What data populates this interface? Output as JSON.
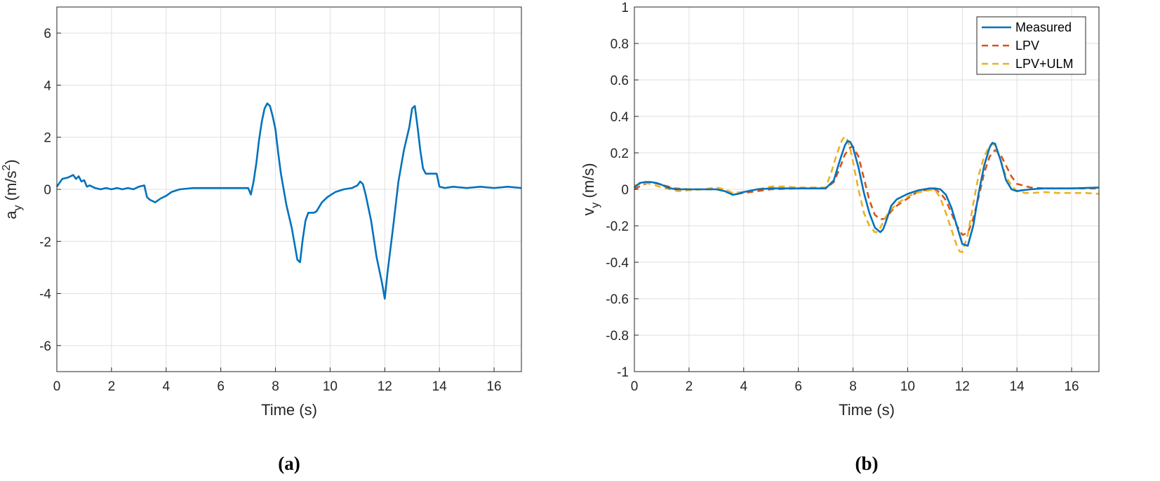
{
  "chart_data": [
    {
      "type": "line",
      "caption": "(a)",
      "xlabel": "Time (s)",
      "ylabel_main": "a",
      "ylabel_sub": "y",
      "ylabel_unit_pre": " (m/s",
      "ylabel_sup": "2",
      "ylabel_unit_post": ")",
      "xlim": [
        0,
        17
      ],
      "ylim": [
        -7,
        7
      ],
      "xticks": [
        0,
        2,
        4,
        6,
        8,
        10,
        12,
        14,
        16
      ],
      "yticks": [
        -6,
        -4,
        -2,
        0,
        2,
        4,
        6
      ],
      "grid": true,
      "series": [
        {
          "color": "#0072BD",
          "dash": "solid",
          "x": [
            0,
            0.2,
            0.4,
            0.5,
            0.6,
            0.7,
            0.8,
            0.9,
            1.0,
            1.1,
            1.2,
            1.4,
            1.6,
            1.8,
            2.0,
            2.2,
            2.4,
            2.6,
            2.8,
            3.0,
            3.2,
            3.3,
            3.4,
            3.5,
            3.6,
            3.8,
            4.0,
            4.2,
            4.5,
            5.0,
            5.5,
            6.0,
            6.5,
            7.0,
            7.1,
            7.2,
            7.3,
            7.4,
            7.5,
            7.6,
            7.7,
            7.8,
            7.9,
            8.0,
            8.1,
            8.2,
            8.3,
            8.4,
            8.6,
            8.8,
            8.9,
            9.0,
            9.1,
            9.2,
            9.4,
            9.5,
            9.7,
            9.9,
            10.2,
            10.5,
            10.8,
            11.0,
            11.1,
            11.2,
            11.3,
            11.5,
            11.7,
            11.9,
            12.0,
            12.1,
            12.3,
            12.5,
            12.7,
            12.9,
            13.0,
            13.1,
            13.2,
            13.3,
            13.4,
            13.5,
            13.7,
            13.9,
            14.0,
            14.2,
            14.5,
            15.0,
            15.5,
            16.0,
            16.5,
            17.0
          ],
          "y": [
            0.1,
            0.4,
            0.45,
            0.5,
            0.55,
            0.4,
            0.5,
            0.3,
            0.35,
            0.1,
            0.15,
            0.05,
            0.0,
            0.05,
            0.0,
            0.05,
            0.0,
            0.05,
            0.0,
            0.1,
            0.15,
            -0.3,
            -0.4,
            -0.45,
            -0.5,
            -0.35,
            -0.25,
            -0.1,
            0.0,
            0.05,
            0.05,
            0.05,
            0.05,
            0.05,
            -0.2,
            0.3,
            1.0,
            1.9,
            2.6,
            3.1,
            3.3,
            3.2,
            2.8,
            2.3,
            1.4,
            0.6,
            0.0,
            -0.6,
            -1.5,
            -2.7,
            -2.8,
            -1.9,
            -1.2,
            -0.9,
            -0.9,
            -0.85,
            -0.5,
            -0.3,
            -0.1,
            0.0,
            0.05,
            0.15,
            0.3,
            0.2,
            -0.2,
            -1.2,
            -2.6,
            -3.6,
            -4.2,
            -3.2,
            -1.5,
            0.3,
            1.5,
            2.4,
            3.1,
            3.2,
            2.4,
            1.5,
            0.8,
            0.6,
            0.6,
            0.6,
            0.1,
            0.05,
            0.1,
            0.05,
            0.1,
            0.05,
            0.1,
            0.05
          ]
        }
      ]
    },
    {
      "type": "line",
      "caption": "(b)",
      "xlabel": "Time (s)",
      "ylabel_main": "v",
      "ylabel_sub": "y",
      "ylabel_unit_pre": " (m/s)",
      "xlim": [
        0,
        17
      ],
      "ylim": [
        -1,
        1
      ],
      "xticks": [
        0,
        2,
        4,
        6,
        8,
        10,
        12,
        14,
        16
      ],
      "yticks": [
        -1,
        -0.8,
        -0.6,
        -0.4,
        -0.2,
        0,
        0.2,
        0.4,
        0.6,
        0.8,
        1
      ],
      "grid": true,
      "legend_position": "top-right",
      "series": [
        {
          "name": "Measured",
          "color": "#0072BD",
          "dash": "solid",
          "x": [
            0,
            0.2,
            0.4,
            0.6,
            0.8,
            1.0,
            1.2,
            1.5,
            2.0,
            2.5,
            3.0,
            3.3,
            3.6,
            3.8,
            4.0,
            4.5,
            5.0,
            6.0,
            7.0,
            7.3,
            7.5,
            7.7,
            7.8,
            7.9,
            8.0,
            8.2,
            8.4,
            8.6,
            8.8,
            9.0,
            9.1,
            9.2,
            9.4,
            9.6,
            9.8,
            10.0,
            10.2,
            10.4,
            10.6,
            10.8,
            11.0,
            11.2,
            11.4,
            11.6,
            11.8,
            12.0,
            12.2,
            12.4,
            12.6,
            12.8,
            13.0,
            13.1,
            13.2,
            13.4,
            13.6,
            13.8,
            14.0,
            14.2,
            14.5,
            15.0,
            16.0,
            17.0
          ],
          "y": [
            0.01,
            0.035,
            0.04,
            0.04,
            0.035,
            0.025,
            0.01,
            0.0,
            0.0,
            0.0,
            0.0,
            -0.01,
            -0.03,
            -0.025,
            -0.015,
            0.0,
            0.005,
            0.005,
            0.005,
            0.05,
            0.15,
            0.24,
            0.265,
            0.26,
            0.23,
            0.12,
            -0.02,
            -0.13,
            -0.21,
            -0.235,
            -0.22,
            -0.18,
            -0.09,
            -0.055,
            -0.04,
            -0.025,
            -0.015,
            -0.005,
            0.0,
            0.005,
            0.005,
            0.0,
            -0.03,
            -0.1,
            -0.2,
            -0.3,
            -0.31,
            -0.2,
            -0.02,
            0.13,
            0.23,
            0.255,
            0.25,
            0.16,
            0.05,
            0.0,
            -0.01,
            -0.005,
            0.0,
            0.005,
            0.005,
            0.01
          ]
        },
        {
          "name": "LPV",
          "color": "#D95319",
          "dash": "dashed",
          "x": [
            0,
            0.3,
            0.6,
            1.0,
            1.5,
            2.0,
            2.5,
            3.0,
            3.4,
            3.7,
            4.0,
            4.5,
            5.0,
            6.0,
            7.0,
            7.3,
            7.5,
            7.7,
            7.9,
            8.0,
            8.2,
            8.4,
            8.6,
            8.8,
            9.0,
            9.2,
            9.4,
            9.6,
            9.8,
            10.0,
            10.3,
            10.6,
            11.0,
            11.2,
            11.4,
            11.6,
            11.8,
            12.0,
            12.2,
            12.4,
            12.6,
            12.8,
            13.0,
            13.2,
            13.4,
            13.6,
            13.8,
            14.0,
            14.5,
            15.0,
            16.0,
            17.0
          ],
          "y": [
            0.0,
            0.025,
            0.04,
            0.025,
            0.005,
            0.0,
            0.0,
            0.0,
            -0.01,
            -0.025,
            -0.02,
            -0.01,
            0.0,
            0.005,
            0.005,
            0.04,
            0.11,
            0.19,
            0.23,
            0.235,
            0.18,
            0.06,
            -0.06,
            -0.14,
            -0.165,
            -0.16,
            -0.12,
            -0.09,
            -0.07,
            -0.05,
            -0.02,
            -0.005,
            0.0,
            -0.02,
            -0.06,
            -0.13,
            -0.2,
            -0.25,
            -0.24,
            -0.16,
            -0.04,
            0.09,
            0.18,
            0.215,
            0.19,
            0.13,
            0.07,
            0.03,
            0.01,
            0.005,
            0.005,
            0.005
          ]
        },
        {
          "name": "LPV+ULM",
          "color": "#EDB120",
          "dash": "dashed",
          "x": [
            0,
            0.3,
            0.6,
            1.0,
            1.3,
            1.6,
            2.0,
            2.5,
            3.0,
            3.3,
            3.6,
            4.0,
            4.5,
            5.0,
            5.5,
            6.0,
            7.0,
            7.2,
            7.4,
            7.6,
            7.7,
            7.8,
            7.9,
            8.0,
            8.2,
            8.4,
            8.6,
            8.8,
            8.9,
            9.0,
            9.2,
            9.4,
            9.6,
            9.8,
            10.0,
            10.3,
            10.6,
            11.0,
            11.2,
            11.4,
            11.6,
            11.8,
            11.9,
            12.0,
            12.2,
            12.4,
            12.6,
            12.8,
            13.0,
            13.1,
            13.2,
            13.4,
            13.6,
            13.8,
            14.0,
            14.3,
            14.6,
            15.0,
            15.5,
            16.0,
            16.5,
            17.0
          ],
          "y": [
            0.02,
            0.035,
            0.03,
            0.01,
            0.0,
            -0.01,
            -0.005,
            0.0,
            0.01,
            0.0,
            -0.02,
            -0.015,
            0.0,
            0.015,
            0.015,
            0.01,
            0.01,
            0.09,
            0.19,
            0.27,
            0.29,
            0.27,
            0.22,
            0.15,
            0.0,
            -0.13,
            -0.2,
            -0.235,
            -0.235,
            -0.21,
            -0.15,
            -0.11,
            -0.08,
            -0.06,
            -0.04,
            -0.02,
            -0.01,
            0.0,
            -0.05,
            -0.13,
            -0.22,
            -0.31,
            -0.34,
            -0.345,
            -0.25,
            -0.08,
            0.08,
            0.18,
            0.24,
            0.25,
            0.24,
            0.16,
            0.07,
            0.02,
            -0.01,
            -0.02,
            -0.02,
            -0.015,
            -0.02,
            -0.02,
            -0.02,
            -0.025
          ]
        }
      ]
    }
  ]
}
